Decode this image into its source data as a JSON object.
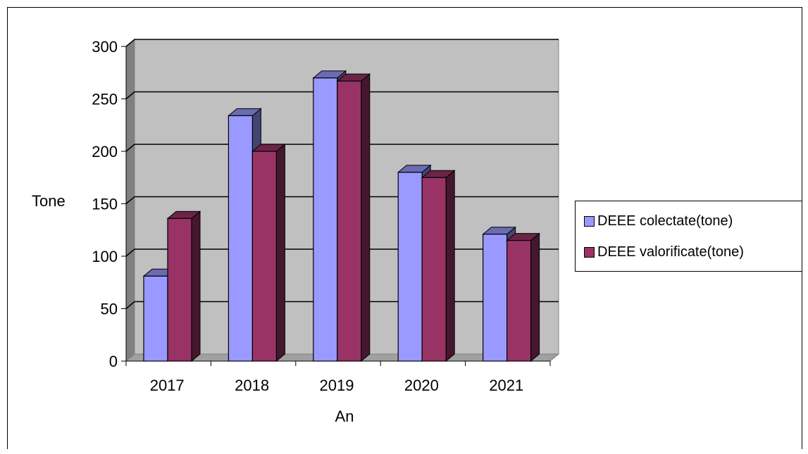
{
  "chart_data": {
    "type": "bar",
    "title": "",
    "xlabel": "An",
    "ylabel": "Tone",
    "categories": [
      "2017",
      "2018",
      "2019",
      "2020",
      "2021"
    ],
    "series": [
      {
        "name": "DEEE colectate(tone)",
        "values": [
          81,
          234,
          270,
          180,
          121
        ],
        "color": "#9999ff"
      },
      {
        "name": "DEEE valorificate(tone)",
        "values": [
          136,
          200,
          267,
          175,
          115
        ],
        "color": "#993366"
      }
    ],
    "ylim": [
      0,
      300
    ],
    "yticks": [
      0,
      50,
      100,
      150,
      200,
      250,
      300
    ],
    "grid": true,
    "legend_position": "right",
    "style": "3d-clustered-column"
  }
}
